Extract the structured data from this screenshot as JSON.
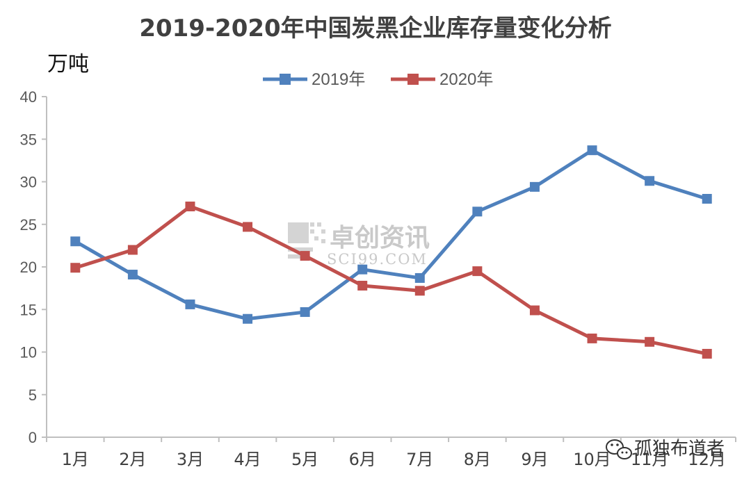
{
  "chart_data": {
    "type": "line",
    "title": "2019-2020年中国炭黑企业库存量变化分析",
    "ylabel": "万吨",
    "xlabel": "",
    "categories": [
      "1月",
      "2月",
      "3月",
      "4月",
      "5月",
      "6月",
      "7月",
      "8月",
      "9月",
      "10月",
      "11月",
      "12月"
    ],
    "ylim": [
      0,
      40
    ],
    "yticks": [
      0,
      5,
      10,
      15,
      20,
      25,
      30,
      35,
      40
    ],
    "grid": false,
    "legend_position": "top-center",
    "series": [
      {
        "name": "2019年",
        "color": "#4f81bd",
        "values": [
          23.0,
          19.1,
          15.6,
          13.9,
          14.7,
          19.7,
          18.7,
          26.5,
          29.4,
          33.7,
          30.1,
          28.0
        ]
      },
      {
        "name": "2020年",
        "color": "#c0504d",
        "values": [
          19.9,
          22.0,
          27.1,
          24.7,
          21.3,
          17.8,
          17.2,
          19.5,
          14.9,
          11.6,
          11.2,
          9.8
        ]
      }
    ]
  },
  "watermark": {
    "cn": "卓创资讯",
    "en": "SCI99.COM"
  },
  "signature": "孤独布道者"
}
